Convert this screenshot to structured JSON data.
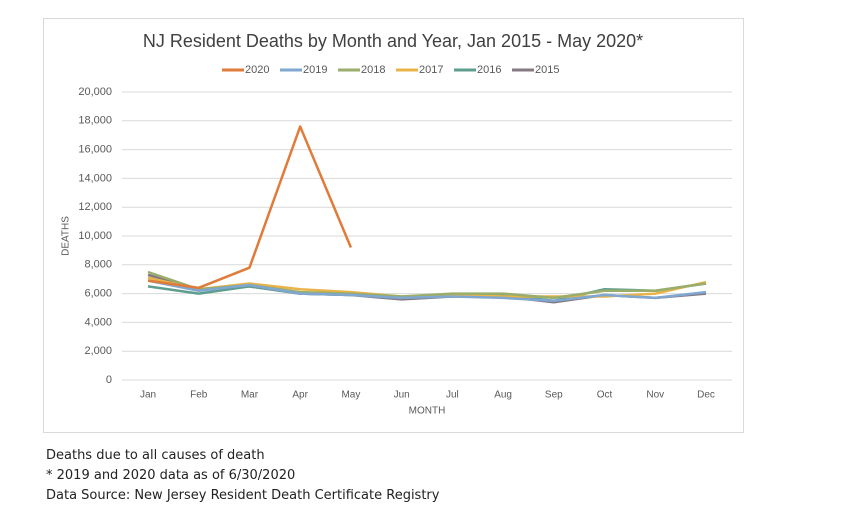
{
  "chart_data": {
    "type": "line",
    "title": "NJ Resident Deaths by Month and Year, Jan 2015 - May 2020*",
    "x_label": "MONTH",
    "y_label": "DEATHS",
    "categories": [
      "Jan",
      "Feb",
      "Mar",
      "Apr",
      "May",
      "Jun",
      "Jul",
      "Aug",
      "Sep",
      "Oct",
      "Nov",
      "Dec"
    ],
    "ylim": [
      0,
      20000
    ],
    "yticks": [
      0,
      {
        "value": 2000,
        "label": "2,000"
      },
      {
        "value": 4000,
        "label": "4,000"
      },
      {
        "value": 6000,
        "label": "6,000"
      },
      {
        "value": 8000,
        "label": "8,000"
      },
      {
        "value": 10000,
        "label": "10,000"
      },
      {
        "value": 12000,
        "label": "12,000"
      },
      {
        "value": 14000,
        "label": "14,000"
      },
      {
        "value": 16000,
        "label": "16,000"
      },
      {
        "value": 18000,
        "label": "18,000"
      },
      {
        "value": 20000,
        "label": "20,000"
      }
    ],
    "grid": true,
    "legend": "top",
    "series": [
      {
        "name": "2020",
        "color": "#e07b39",
        "values": [
          6900,
          6400,
          7800,
          17600,
          9200,
          null,
          null,
          null,
          null,
          null,
          null,
          null
        ]
      },
      {
        "name": "2019",
        "color": "#7fa7d0",
        "values": [
          6900,
          6200,
          6600,
          6000,
          5900,
          5700,
          5800,
          5700,
          5500,
          5900,
          5700,
          6100
        ]
      },
      {
        "name": "2018",
        "color": "#9aad6a",
        "values": [
          7500,
          6300,
          6600,
          6100,
          6000,
          5800,
          6000,
          6000,
          5700,
          6200,
          6200,
          6700
        ]
      },
      {
        "name": "2017",
        "color": "#e8b449",
        "values": [
          7100,
          6300,
          6700,
          6300,
          6100,
          5800,
          5900,
          5800,
          5800,
          5800,
          6000,
          6800
        ]
      },
      {
        "name": "2016",
        "color": "#5e9e8e",
        "values": [
          6500,
          6000,
          6500,
          6000,
          5900,
          5700,
          5900,
          5900,
          5500,
          6300,
          6200,
          6700
        ]
      },
      {
        "name": "2015",
        "color": "#857a82",
        "values": [
          7300,
          6300,
          6500,
          6000,
          5900,
          5600,
          5800,
          5800,
          5400,
          5900,
          5700,
          6000
        ]
      }
    ]
  },
  "footnotes": [
    "Deaths due to all causes of death",
    "* 2019 and 2020 data as of 6/30/2020",
    "Data Source: New Jersey Resident Death Certificate Registry"
  ]
}
